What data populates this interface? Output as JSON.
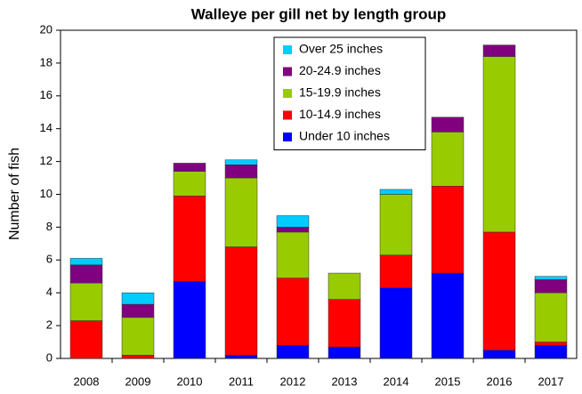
{
  "chart_data": {
    "type": "stacked_bar",
    "title": "Walleye per gill net by length group",
    "y_label": "Number of fish",
    "categories": [
      "2008",
      "2009",
      "2010",
      "2011",
      "2012",
      "2013",
      "2014",
      "2015",
      "2016",
      "2017"
    ],
    "series": [
      {
        "name": "Under 10 inches",
        "color": "#0000ff",
        "values": [
          0,
          0,
          4.7,
          0.2,
          0.8,
          0.7,
          4.3,
          5.2,
          0.5,
          0.8
        ]
      },
      {
        "name": "10-14.9 inches",
        "color": "#ff0000",
        "values": [
          2.3,
          0.2,
          5.2,
          6.6,
          4.1,
          2.9,
          2.0,
          5.3,
          7.2,
          0.2
        ]
      },
      {
        "name": "15-19.9 inches",
        "color": "#99cc00",
        "values": [
          2.3,
          2.3,
          1.5,
          4.2,
          2.8,
          1.6,
          3.7,
          3.3,
          10.7,
          3.0
        ]
      },
      {
        "name": "20-24.9 inches",
        "color": "#800080",
        "values": [
          1.1,
          0.8,
          0.5,
          0.8,
          0.3,
          0,
          0,
          0.9,
          0.7,
          0.8
        ]
      },
      {
        "name": "Over  25 inches",
        "color": "#00ccff",
        "values": [
          0.4,
          0.7,
          0,
          0.3,
          0.7,
          0,
          0.3,
          0,
          0,
          0.2
        ]
      }
    ],
    "ylim": [
      0,
      20
    ],
    "yticks": [
      0,
      2,
      4,
      6,
      8,
      10,
      12,
      14,
      16,
      18,
      20
    ],
    "grid": false,
    "legend": "top-center"
  }
}
